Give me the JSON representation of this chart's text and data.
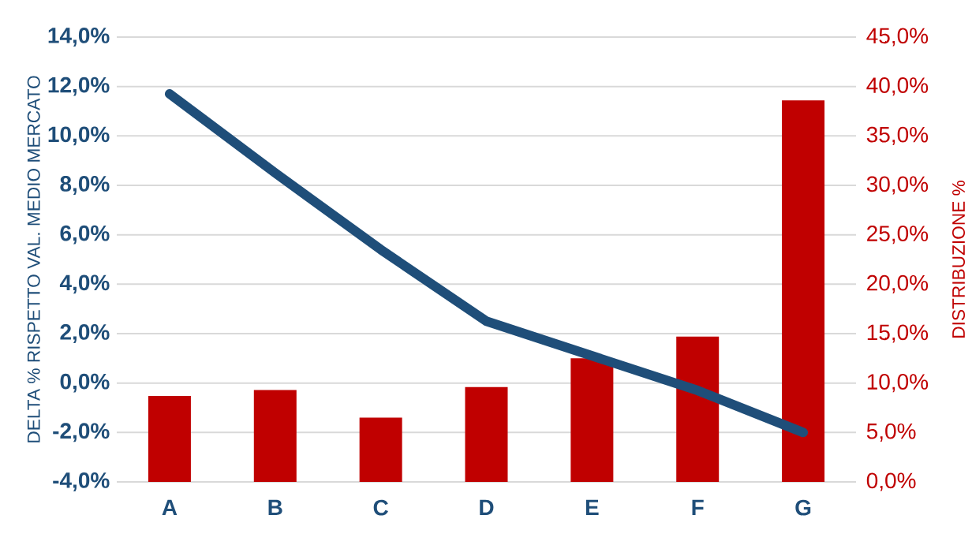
{
  "chart_data": {
    "type": "bar",
    "ylabel": "DELTA % RISPETTO VAL. MEDIO MERCATO",
    "y2label": "DISTRIBUZIONE %",
    "categories": [
      "A",
      "B",
      "C",
      "D",
      "E",
      "F",
      "G"
    ],
    "series": [
      {
        "axis": "y2",
        "color": "#c00000",
        "values": [
          8.7,
          9.3,
          6.5,
          9.6,
          12.5,
          14.7,
          38.6
        ]
      },
      {
        "type": "line",
        "axis": "y",
        "color": "#1f4e79",
        "values": [
          11.7,
          8.5,
          5.4,
          2.5,
          1.1,
          -0.3,
          -2.0
        ]
      }
    ],
    "ylim": [
      -4,
      14
    ],
    "yticks": [
      {
        "value": -4,
        "label": "-4,0%"
      },
      {
        "value": -2,
        "label": "-2,0%"
      },
      {
        "value": 0,
        "label": "0,0%"
      },
      {
        "value": 2,
        "label": "2,0%"
      },
      {
        "value": 4,
        "label": "4,0%"
      },
      {
        "value": 6,
        "label": "6,0%"
      },
      {
        "value": 8,
        "label": "8,0%"
      },
      {
        "value": 10,
        "label": "10,0%"
      },
      {
        "value": 12,
        "label": "12,0%"
      },
      {
        "value": 14,
        "label": "14,0%"
      }
    ],
    "y2lim": [
      0,
      45
    ],
    "y2ticks": [
      {
        "value": 0,
        "label": "0,0%"
      },
      {
        "value": 5,
        "label": "5,0%"
      },
      {
        "value": 10,
        "label": "10,0%"
      },
      {
        "value": 15,
        "label": "15,0%"
      },
      {
        "value": 20,
        "label": "20,0%"
      },
      {
        "value": 25,
        "label": "25,0%"
      },
      {
        "value": 30,
        "label": "30,0%"
      },
      {
        "value": 35,
        "label": "35,0%"
      },
      {
        "value": 40,
        "label": "40,0%"
      },
      {
        "value": 45,
        "label": "45,0%"
      }
    ],
    "grid": "y"
  }
}
